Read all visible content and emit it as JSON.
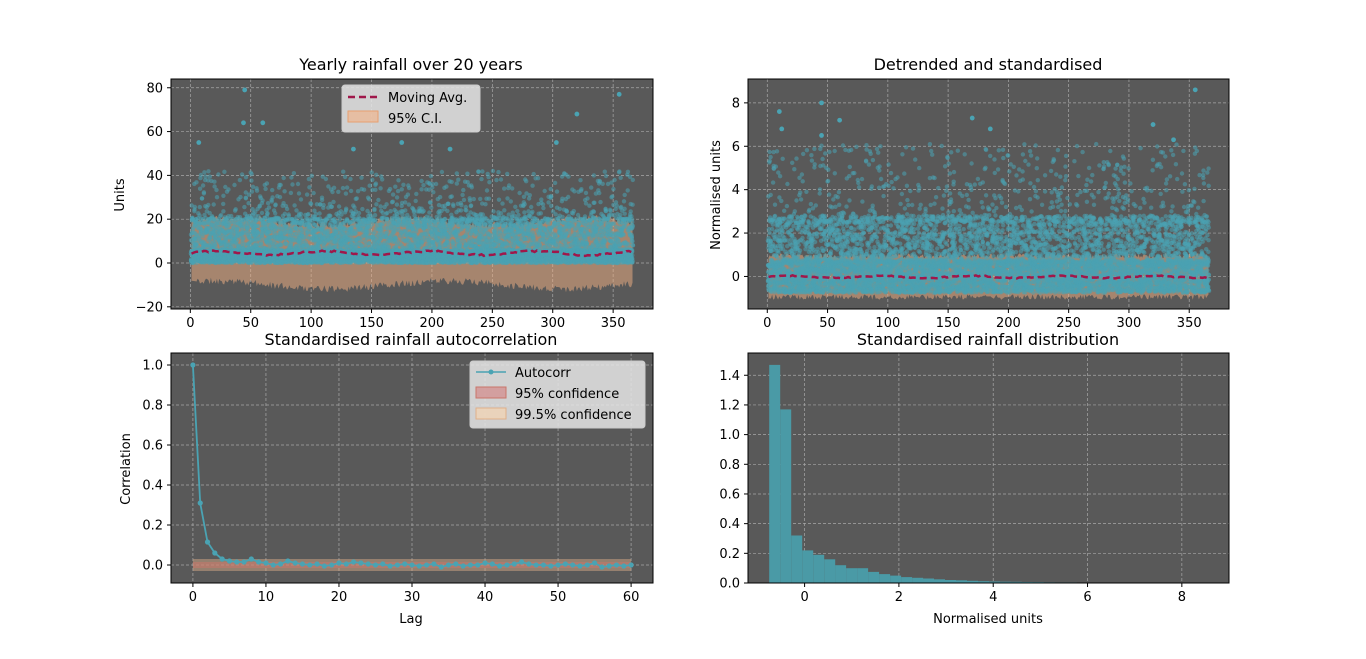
{
  "figure": {
    "colors": {
      "axes_bg": "#595959",
      "scatter": "#4aa3b3",
      "moving_avg": "#a0174a",
      "ci_fill": "#f4b183",
      "band_95": "#c9756a",
      "band_995": "#e0b08a",
      "hist": "#4a9aa6",
      "grid": "#a8a8a8"
    }
  },
  "chart_data": [
    {
      "id": "raw",
      "type": "scatter",
      "title": "Yearly rainfall over 20 years",
      "xlabel": "",
      "ylabel": "Units",
      "xlim": [
        -16,
        383
      ],
      "ylim": [
        -21,
        84
      ],
      "xticks": [
        0,
        50,
        100,
        150,
        200,
        250,
        300,
        350
      ],
      "yticks": [
        -20,
        0,
        20,
        40,
        60,
        80
      ],
      "grid": true,
      "legend": {
        "placement": "upper center",
        "entries": [
          "Moving Avg.",
          "95% C.I."
        ]
      },
      "x_range_days": [
        1,
        366
      ],
      "points_per_day": 20,
      "typical_range": [
        0,
        20
      ],
      "notable_points": [
        [
          45,
          79
        ],
        [
          44,
          64
        ],
        [
          60,
          64
        ],
        [
          7,
          55
        ],
        [
          320,
          68
        ],
        [
          355,
          77
        ],
        [
          175,
          55
        ],
        [
          135,
          52
        ],
        [
          215,
          52
        ],
        [
          303,
          55
        ]
      ],
      "moving_avg_level": 4.5,
      "ci_upper": 19,
      "ci_lower": -10
    },
    {
      "id": "standardised",
      "type": "scatter",
      "title": "Detrended and standardised",
      "xlabel": "",
      "ylabel": "Normalised units",
      "xlim": [
        -16,
        383
      ],
      "ylim": [
        -1.5,
        9.1
      ],
      "xticks": [
        0,
        50,
        100,
        150,
        200,
        250,
        300,
        350
      ],
      "yticks": [
        0,
        2,
        4,
        6,
        8
      ],
      "grid": true,
      "x_range_days": [
        1,
        366
      ],
      "notable_points": [
        [
          45,
          8.0
        ],
        [
          355,
          8.6
        ],
        [
          10,
          7.6
        ],
        [
          60,
          7.2
        ],
        [
          170,
          7.3
        ],
        [
          320,
          7.0
        ],
        [
          185,
          6.8
        ],
        [
          12,
          6.8
        ],
        [
          45,
          6.5
        ],
        [
          337,
          6.3
        ]
      ],
      "moving_avg_level": -0.02,
      "ci_upper": 0.95,
      "ci_lower": -0.95
    },
    {
      "id": "autocorr",
      "type": "line",
      "title": "Standardised rainfall autocorrelation",
      "xlabel": "Lag",
      "ylabel": "Correlation",
      "xlim": [
        -3,
        63
      ],
      "ylim": [
        -0.09,
        1.06
      ],
      "xticks": [
        0,
        10,
        20,
        30,
        40,
        50,
        60
      ],
      "yticks": [
        0.0,
        0.2,
        0.4,
        0.6,
        0.8,
        1.0
      ],
      "grid": true,
      "legend": {
        "placement": "upper right",
        "entries": [
          "Autocorr",
          "95% confidence",
          "99.5% confidence"
        ]
      },
      "x": [
        0,
        1,
        2,
        3,
        4,
        5,
        6,
        7,
        8,
        9,
        10,
        11,
        12,
        13,
        14,
        15,
        16,
        17,
        18,
        19,
        20,
        21,
        22,
        23,
        24,
        25,
        26,
        27,
        28,
        29,
        30,
        31,
        32,
        33,
        34,
        35,
        36,
        37,
        38,
        39,
        40,
        41,
        42,
        43,
        44,
        45,
        46,
        47,
        48,
        49,
        50,
        51,
        52,
        53,
        54,
        55,
        56,
        57,
        58,
        59,
        60
      ],
      "y": [
        1.0,
        0.31,
        0.115,
        0.06,
        0.03,
        0.02,
        0.015,
        0.015,
        0.03,
        0.015,
        0.01,
        0.0,
        0.005,
        0.02,
        0.01,
        0.005,
        0.0,
        0.005,
        -0.005,
        0.0,
        0.01,
        0.005,
        0.015,
        0.01,
        0.005,
        0.0,
        0.005,
        -0.005,
        0.0,
        0.005,
        0.0,
        -0.005,
        0.0,
        0.005,
        -0.01,
        0.0,
        0.005,
        -0.005,
        0.0,
        0.0,
        0.01,
        0.005,
        -0.005,
        0.0,
        0.005,
        0.015,
        0.005,
        0.0,
        0.0,
        -0.005,
        0.0,
        0.005,
        0.0,
        -0.005,
        0.0,
        0.01,
        -0.01,
        -0.005,
        0.0,
        -0.005,
        0.0
      ],
      "band_95": 0.015,
      "band_995": 0.03
    },
    {
      "id": "distribution",
      "type": "bar",
      "title": "Standardised rainfall distribution",
      "xlabel": "Normalised units",
      "ylabel": "",
      "xlim": [
        -1.2,
        9.0
      ],
      "ylim": [
        0,
        1.55
      ],
      "xticks": [
        0,
        2,
        4,
        6,
        8
      ],
      "yticks": [
        0.0,
        0.2,
        0.4,
        0.6,
        0.8,
        1.0,
        1.2,
        1.4
      ],
      "grid": true,
      "bin_start": -0.75,
      "bin_width": 0.233,
      "values": [
        1.47,
        1.17,
        0.32,
        0.22,
        0.19,
        0.16,
        0.12,
        0.1,
        0.1,
        0.075,
        0.06,
        0.05,
        0.04,
        0.035,
        0.03,
        0.025,
        0.02,
        0.018,
        0.015,
        0.012,
        0.01,
        0.009,
        0.008,
        0.007,
        0.006,
        0.005,
        0.004,
        0.004,
        0.003,
        0.003,
        0.002,
        0.002,
        0.002,
        0.001,
        0.001,
        0.001,
        0.001,
        0.0,
        0.0,
        0.0,
        0.0,
        0.0,
        0.0,
        0.0,
        0.0,
        0.0,
        0.0,
        0.0,
        0.0,
        0.0
      ]
    }
  ]
}
